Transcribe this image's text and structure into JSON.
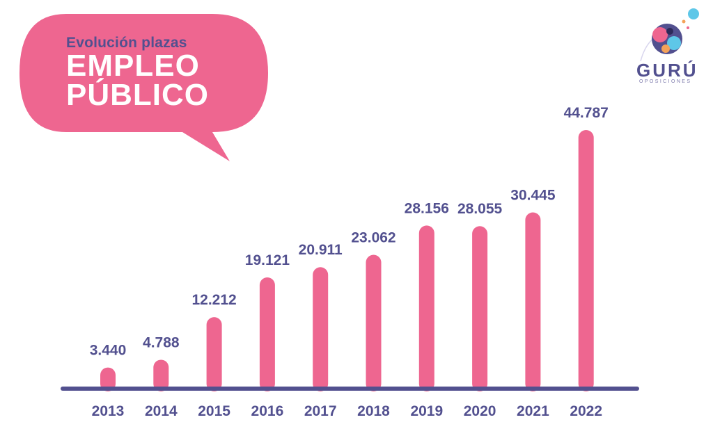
{
  "header": {
    "subtitle": "Evolución plazas",
    "title_line1": "EMPLEO",
    "title_line2": "PÚBLICO"
  },
  "logo": {
    "name": "GURÚ",
    "tagline": "OPOSICIONES"
  },
  "colors": {
    "bar": "#ee6690",
    "bubble": "#ee6690",
    "label": "#52508f",
    "axis": "#52508f"
  },
  "chart_data": {
    "type": "bar",
    "title": "Evolución plazas EMPLEO PÚBLICO",
    "categories": [
      "2013",
      "2014",
      "2015",
      "2016",
      "2017",
      "2018",
      "2019",
      "2020",
      "2021",
      "2022"
    ],
    "values": [
      3440,
      4788,
      12212,
      19121,
      20911,
      23062,
      28156,
      28055,
      30445,
      44787
    ],
    "value_labels": [
      "3.440",
      "4.788",
      "12.212",
      "19.121",
      "20.911",
      "23.062",
      "28.156",
      "28.055",
      "30.445",
      "44.787"
    ],
    "xlabel": "",
    "ylabel": "",
    "grid": false,
    "legend": "none"
  }
}
